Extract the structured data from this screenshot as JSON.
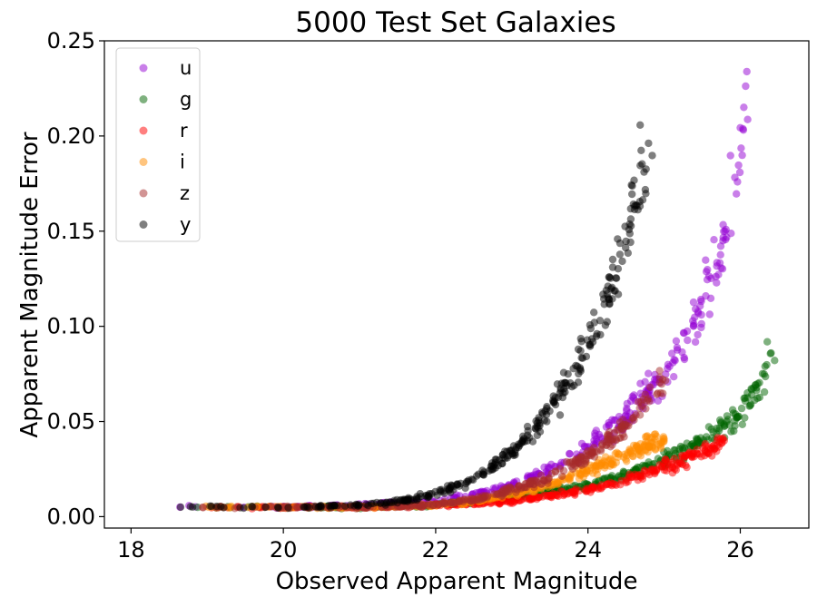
{
  "chart_data": {
    "type": "scatter",
    "title": "5000 Test Set Galaxies",
    "xlabel": "Observed Apparent Magnitude",
    "ylabel": "Apparent Magnitude Error",
    "xlim": [
      17.65,
      26.9
    ],
    "ylim": [
      -0.006,
      0.25
    ],
    "xticks": [
      18,
      20,
      22,
      24,
      26
    ],
    "xtick_labels": [
      "18",
      "20",
      "22",
      "24",
      "26"
    ],
    "yticks": [
      0.0,
      0.05,
      0.1,
      0.15,
      0.2,
      0.25
    ],
    "ytick_labels": [
      "0.00",
      "0.05",
      "0.10",
      "0.15",
      "0.20",
      "0.25"
    ],
    "grid": false,
    "legend_position": "top-left",
    "n_points_per_series": 5000,
    "series": [
      {
        "name": "u",
        "color": "#9400D3",
        "x": [
          18.2,
          19.0,
          20.0,
          21.0,
          22.0,
          22.5,
          23.0,
          23.5,
          24.0,
          24.5,
          25.0,
          25.5,
          25.8,
          26.0,
          26.1
        ],
        "y": [
          0.005,
          0.005,
          0.005,
          0.006,
          0.008,
          0.012,
          0.017,
          0.025,
          0.036,
          0.052,
          0.075,
          0.11,
          0.145,
          0.185,
          0.22
        ],
        "x_range": [
          18.1,
          26.1
        ],
        "y_range_at_end": [
          0.14,
          0.238
        ]
      },
      {
        "name": "g",
        "color": "#006400",
        "x": [
          18.2,
          19.0,
          20.0,
          21.0,
          22.0,
          23.0,
          24.0,
          24.5,
          25.0,
          25.5,
          26.0,
          26.3,
          26.4
        ],
        "y": [
          0.005,
          0.005,
          0.005,
          0.005,
          0.006,
          0.01,
          0.017,
          0.022,
          0.03,
          0.04,
          0.055,
          0.07,
          0.085
        ]
      },
      {
        "name": "r",
        "color": "#FF0000",
        "x": [
          18.2,
          19.0,
          20.0,
          21.0,
          22.0,
          23.0,
          24.0,
          24.5,
          25.0,
          25.5,
          25.8
        ],
        "y": [
          0.005,
          0.005,
          0.005,
          0.005,
          0.006,
          0.008,
          0.014,
          0.019,
          0.026,
          0.034,
          0.04
        ]
      },
      {
        "name": "i",
        "color": "#FF8C00",
        "x": [
          18.2,
          19.0,
          20.0,
          21.0,
          22.0,
          22.5,
          23.0,
          23.5,
          24.0,
          24.5,
          25.0
        ],
        "y": [
          0.005,
          0.005,
          0.005,
          0.005,
          0.006,
          0.008,
          0.012,
          0.017,
          0.024,
          0.032,
          0.042
        ]
      },
      {
        "name": "z",
        "color": "#A52A2A",
        "x": [
          18.1,
          19.0,
          20.0,
          21.0,
          22.0,
          22.5,
          23.0,
          23.5,
          24.0,
          24.5,
          25.0
        ],
        "y": [
          0.005,
          0.005,
          0.005,
          0.005,
          0.006,
          0.009,
          0.014,
          0.021,
          0.032,
          0.048,
          0.072
        ]
      },
      {
        "name": "y",
        "color": "#000000",
        "x": [
          18.2,
          19.0,
          20.0,
          21.0,
          21.5,
          22.0,
          22.5,
          23.0,
          23.5,
          24.0,
          24.3,
          24.6,
          24.8
        ],
        "y": [
          0.005,
          0.005,
          0.005,
          0.006,
          0.008,
          0.012,
          0.02,
          0.033,
          0.055,
          0.09,
          0.12,
          0.16,
          0.2
        ],
        "y_range_at_end": [
          0.15,
          0.235
        ]
      }
    ]
  }
}
